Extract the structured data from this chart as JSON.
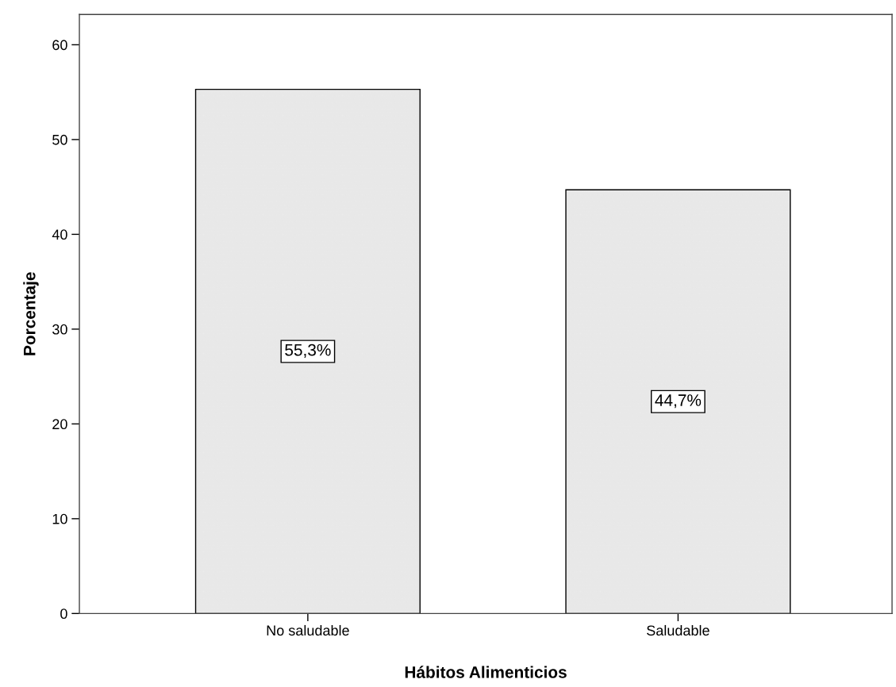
{
  "chart_data": {
    "type": "bar",
    "xlabel": "Hábitos Alimenticios",
    "ylabel": "Porcentaje",
    "categories": [
      "No saludable",
      "Saludable"
    ],
    "values": [
      55.3,
      44.7
    ],
    "value_labels": [
      "55,3%",
      "44,7%"
    ],
    "color": "#e8e8e8",
    "ylim": [
      0,
      63.2
    ],
    "yticks": [
      0,
      10,
      20,
      30,
      40,
      50,
      60
    ],
    "grid": false,
    "legend": false
  }
}
